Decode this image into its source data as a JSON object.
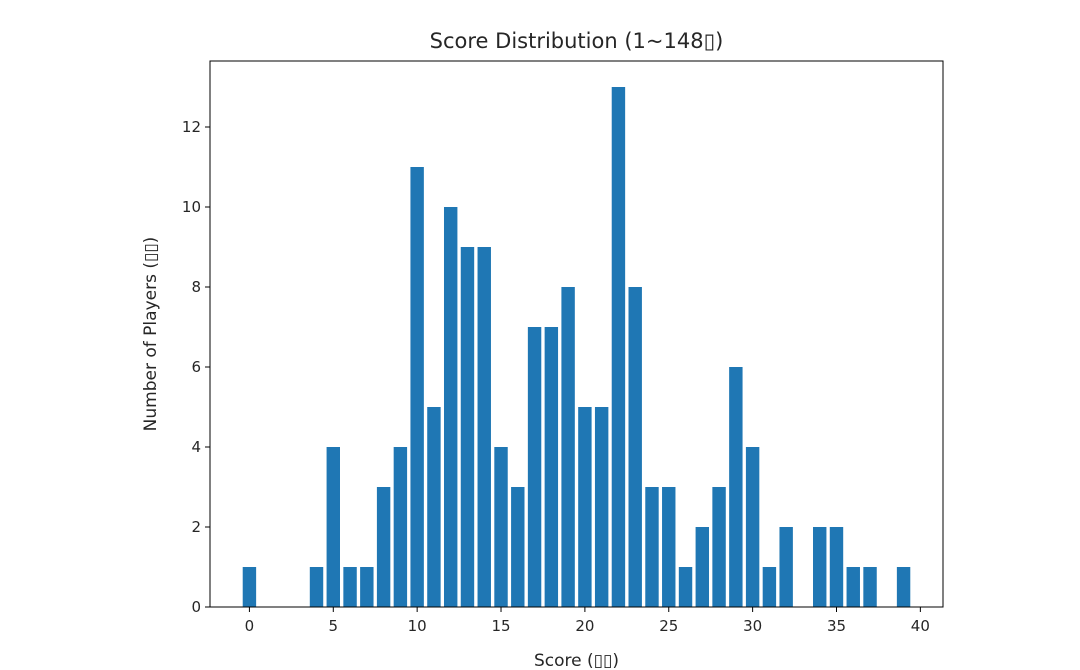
{
  "chart_data": {
    "type": "bar",
    "title": "Score Distribution (1~148▯)",
    "xlabel": "Score (▯▯)",
    "ylabel": "Number of Players (▯▯)",
    "x": [
      0,
      4,
      5,
      6,
      7,
      8,
      9,
      10,
      11,
      12,
      13,
      14,
      15,
      16,
      17,
      18,
      19,
      20,
      21,
      22,
      23,
      24,
      25,
      26,
      27,
      28,
      29,
      30,
      31,
      32,
      34,
      35,
      36,
      37,
      39
    ],
    "values": [
      1,
      1,
      4,
      1,
      1,
      3,
      4,
      11,
      5,
      10,
      9,
      9,
      4,
      3,
      7,
      7,
      8,
      5,
      5,
      13,
      8,
      3,
      3,
      1,
      2,
      3,
      6,
      4,
      1,
      2,
      2,
      2,
      1,
      1,
      1
    ],
    "xlim": [
      -2.35,
      41.35
    ],
    "ylim": [
      0,
      13.65
    ],
    "xticks": [
      0,
      5,
      10,
      15,
      20,
      25,
      30,
      35,
      40
    ],
    "yticks": [
      0,
      2,
      4,
      6,
      8,
      10,
      12
    ],
    "bar_color": "#1f77b4",
    "grid": false,
    "legend": "none"
  }
}
